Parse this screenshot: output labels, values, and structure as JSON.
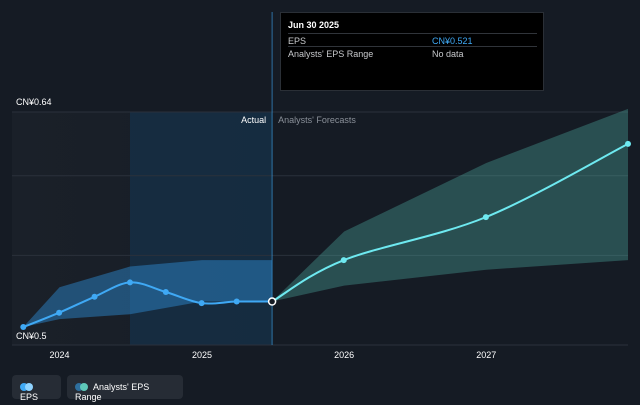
{
  "chart_data": {
    "type": "line",
    "y_axis": {
      "labels": [
        "CN¥0.64",
        "CN¥0.5"
      ],
      "ylim": [
        0.5,
        0.64
      ],
      "grid": true
    },
    "x_axis": {
      "tick_labels": [
        "2024",
        "2025",
        "2026",
        "2027"
      ],
      "xlim": [
        "2023-09-01",
        "2027-12-31"
      ]
    },
    "regions": {
      "actual_label": "Actual",
      "forecast_label": "Analysts' Forecasts",
      "split_date": "2025-06-30"
    },
    "series": [
      {
        "name": "EPS",
        "color": "#3fa9f5",
        "points": [
          {
            "x": "2023-09-30",
            "y": 0.505
          },
          {
            "x": "2023-12-31",
            "y": 0.514
          },
          {
            "x": "2024-03-31",
            "y": 0.524
          },
          {
            "x": "2024-06-30",
            "y": 0.533
          },
          {
            "x": "2024-09-30",
            "y": 0.527
          },
          {
            "x": "2024-12-31",
            "y": 0.52
          },
          {
            "x": "2025-03-31",
            "y": 0.521
          },
          {
            "x": "2025-06-30",
            "y": 0.521
          }
        ]
      },
      {
        "name": "EPS Forecast",
        "color": "#6ee9f0",
        "points": [
          {
            "x": "2025-06-30",
            "y": 0.521
          },
          {
            "x": "2025-12-31",
            "y": 0.547
          },
          {
            "x": "2026-12-31",
            "y": 0.574
          },
          {
            "x": "2027-12-31",
            "y": 0.62
          }
        ]
      }
    ],
    "bands": [
      {
        "name": "Analysts' EPS Range",
        "color": "#3fa9f5",
        "upper": [
          {
            "x": "2023-09-30",
            "y": 0.505
          },
          {
            "x": "2024-01-01",
            "y": 0.53
          },
          {
            "x": "2024-06-30",
            "y": 0.543
          },
          {
            "x": "2025-01-01",
            "y": 0.547
          },
          {
            "x": "2025-06-30",
            "y": 0.547
          }
        ],
        "lower": [
          {
            "x": "2023-09-30",
            "y": 0.505
          },
          {
            "x": "2024-01-01",
            "y": 0.51
          },
          {
            "x": "2024-06-30",
            "y": 0.513
          },
          {
            "x": "2025-01-01",
            "y": 0.521
          },
          {
            "x": "2025-06-30",
            "y": 0.521
          }
        ]
      },
      {
        "name": "Forecast Range",
        "color": "#5ec8b9",
        "upper": [
          {
            "x": "2025-06-30",
            "y": 0.521
          },
          {
            "x": "2026-01-01",
            "y": 0.565
          },
          {
            "x": "2027-01-01",
            "y": 0.608
          },
          {
            "x": "2027-12-31",
            "y": 0.642
          }
        ],
        "lower": [
          {
            "x": "2025-06-30",
            "y": 0.521
          },
          {
            "x": "2026-01-01",
            "y": 0.531
          },
          {
            "x": "2027-01-01",
            "y": 0.541
          },
          {
            "x": "2027-12-31",
            "y": 0.547
          }
        ]
      }
    ],
    "highlight": {
      "x": "2025-06-30"
    }
  },
  "tooltip": {
    "date": "Jun 30 2025",
    "rows": [
      {
        "label": "EPS",
        "value": "CN¥0.521"
      },
      {
        "label": "Analysts' EPS Range",
        "value": "No data"
      }
    ]
  },
  "legend": [
    {
      "label": "EPS",
      "colors": [
        "#3fa9f5",
        "#8fd3ff"
      ]
    },
    {
      "label": "Analysts' EPS Range",
      "colors": [
        "#2e6f9e",
        "#5ec8b9"
      ]
    }
  ]
}
